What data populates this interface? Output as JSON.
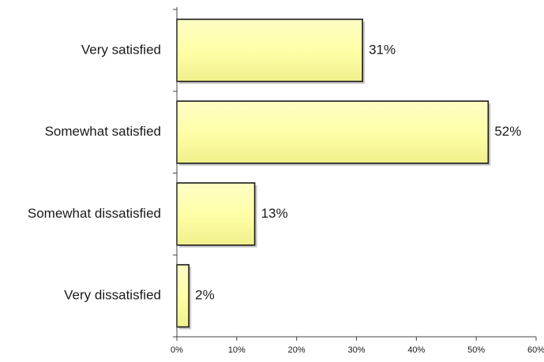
{
  "chart_data": {
    "type": "bar",
    "orientation": "horizontal",
    "categories": [
      "Very satisfied",
      "Somewhat satisfied",
      "Somewhat dissatisfied",
      "Very dissatisfied"
    ],
    "values": [
      31,
      52,
      13,
      2
    ],
    "data_labels": [
      "31%",
      "52%",
      "13%",
      "2%"
    ],
    "xlim": [
      0,
      60
    ],
    "xticks": [
      0,
      10,
      20,
      30,
      40,
      50,
      60
    ],
    "xtick_labels": [
      "0%",
      "10%",
      "20%",
      "30%",
      "40%",
      "50%",
      "60%"
    ],
    "title": "",
    "xlabel": "",
    "ylabel": "",
    "grid": false,
    "legend": "none",
    "colors": {
      "bar_fill": "#ffffa8",
      "bar_edge": "#1a1a1a",
      "axis": "#444444"
    }
  }
}
